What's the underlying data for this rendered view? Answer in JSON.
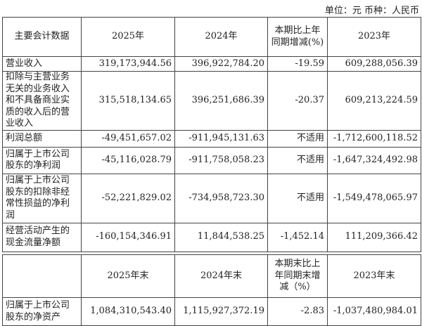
{
  "unit_note": "单位：元 币种：人民币",
  "table1": {
    "headers": [
      "主要会计数据",
      "2025年",
      "2024年",
      "本期比上年同期增减(%)",
      "2023年"
    ],
    "rows": [
      {
        "label": "营业收入",
        "v2025": "319,173,944.56",
        "v2024": "396,922,784.20",
        "change": "-19.59",
        "v2023": "609,288,056.39"
      },
      {
        "label": "扣除与主营业务无关的业务收入和不具备商业实质的收入后的营业收入",
        "v2025": "315,518,134.65",
        "v2024": "396,251,686.39",
        "change": "-20.37",
        "v2023": "609,213,224.59"
      },
      {
        "label": "利润总额",
        "v2025": "-49,451,657.02",
        "v2024": "-911,945,131.63",
        "change": "不适用",
        "v2023": "-1,712,600,118.52"
      },
      {
        "label": "归属于上市公司股东的净利润",
        "v2025": "-45,116,028.79",
        "v2024": "-911,758,058.23",
        "change": "不适用",
        "v2023": "-1,647,324,492.98"
      },
      {
        "label": "归属于上市公司股东的扣除非经常性损益的净利润",
        "v2025": "-52,221,829.02",
        "v2024": "-734,958,723.30",
        "change": "不适用",
        "v2023": "-1,549,478,065.97"
      },
      {
        "label": "经营活动产生的现金流量净额",
        "v2025": "-160,154,346.91",
        "v2024": "11,844,538.25",
        "change": "-1,452.14",
        "v2023": "111,209,366.42"
      }
    ]
  },
  "table2": {
    "headers": [
      "",
      "2025年末",
      "2024年末",
      "本期末比上年同期末增减（%）",
      "2023年末"
    ],
    "rows": [
      {
        "label": "归属于上市公司股东的净资产",
        "v2025": "1,084,310,543.40",
        "v2024": "1,115,927,372.19",
        "change": "-2.83",
        "v2023": "-1,037,480,984.01"
      }
    ]
  }
}
